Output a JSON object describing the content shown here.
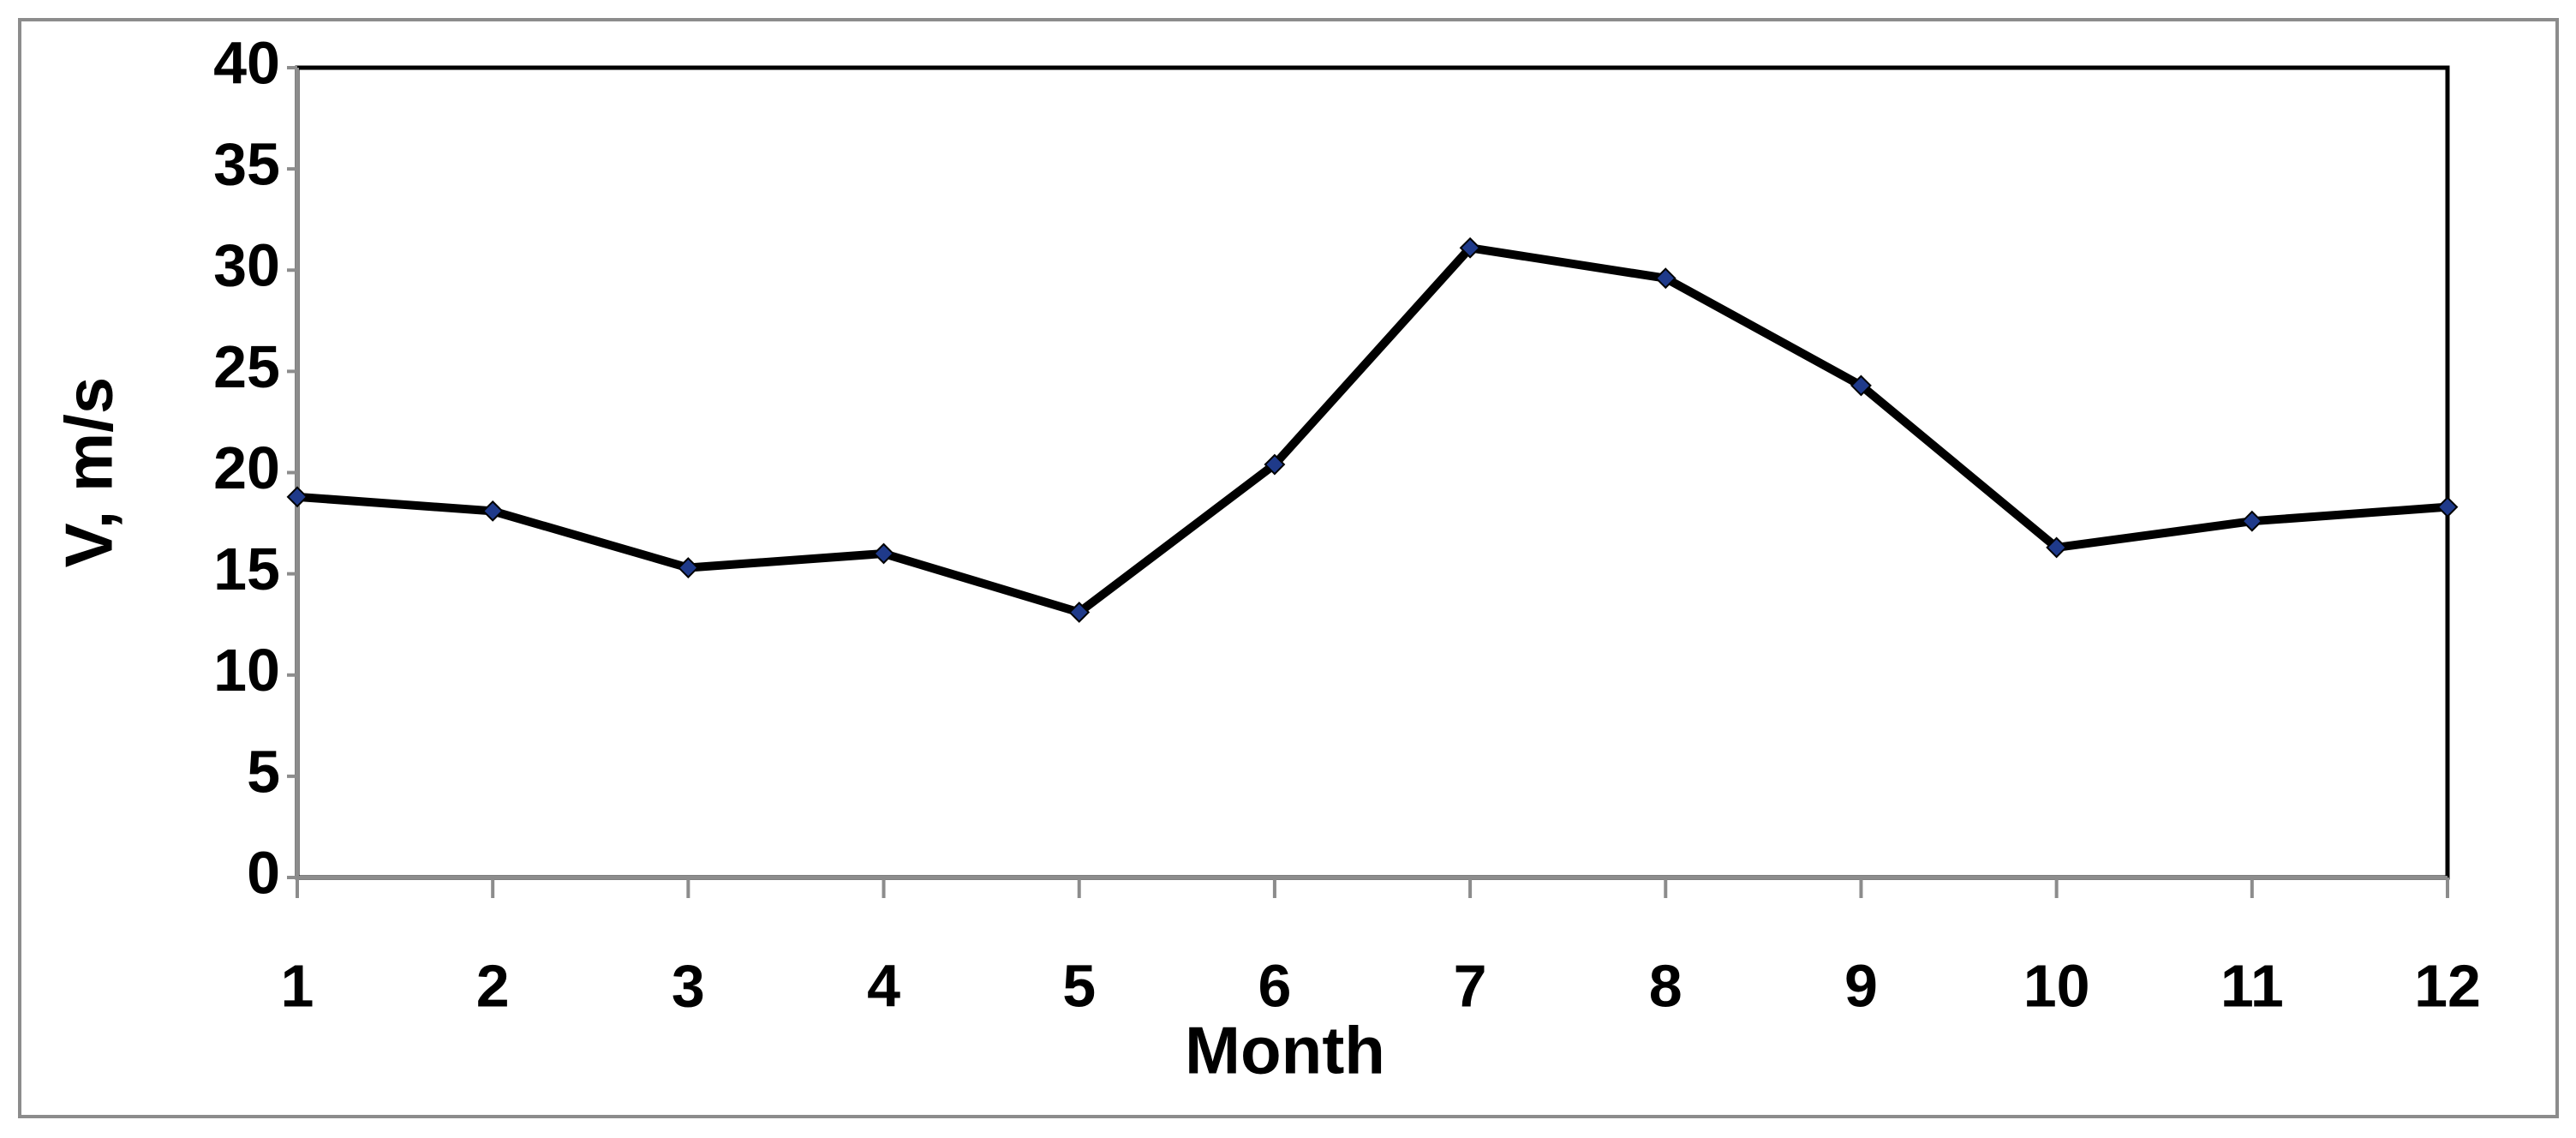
{
  "chart_data": {
    "type": "line",
    "x_label": "Month",
    "y_label": "V, m/s",
    "x": [
      1,
      2,
      3,
      4,
      5,
      6,
      7,
      8,
      9,
      10,
      11,
      12
    ],
    "series": [
      {
        "color": "#000000",
        "marker_color": "#1f3a8a",
        "values": [
          18.8,
          18.1,
          15.3,
          16.0,
          13.1,
          20.4,
          31.1,
          29.6,
          24.3,
          16.3,
          17.6,
          18.3
        ]
      }
    ],
    "xlim": [
      1,
      12
    ],
    "xticks": [
      1,
      2,
      3,
      4,
      5,
      6,
      7,
      8,
      9,
      10,
      11,
      12
    ],
    "ylim": [
      0,
      40
    ],
    "yticks": [
      0,
      5,
      10,
      15,
      20,
      25,
      30,
      35,
      40
    ],
    "grid": false
  }
}
